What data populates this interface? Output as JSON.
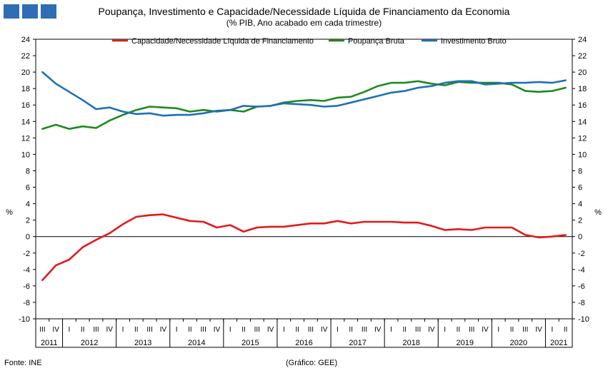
{
  "header": {
    "title": "Poupança, Investimento e Capacidade/Necessidade Líquida de Financiamento da Economia",
    "subtitle": "(% PIB, Ano acabado em cada trimestre)"
  },
  "footer": {
    "source": "Fonte: INE",
    "credit": "(Gráfico: GEE)"
  },
  "colors": {
    "capacidade": "#e31a1c",
    "poupanca": "#1e8a1e",
    "investimento": "#1f6fb8",
    "logo": "#2f6db4"
  },
  "chart_data": {
    "type": "line",
    "ylabel_left": "%",
    "ylabel_right": "%",
    "ylim": [
      -10,
      24
    ],
    "yticks": [
      -10,
      -8,
      -6,
      -4,
      -2,
      0,
      2,
      4,
      6,
      8,
      10,
      12,
      14,
      16,
      18,
      20,
      22,
      24
    ],
    "legend_position": "top-center",
    "grid": false,
    "quarters": [
      "III",
      "IV",
      "I",
      "II",
      "III",
      "IV",
      "I",
      "II",
      "III",
      "IV",
      "I",
      "II",
      "III",
      "IV",
      "I",
      "II",
      "III",
      "IV",
      "I",
      "II",
      "III",
      "IV",
      "I",
      "II",
      "III",
      "IV",
      "I",
      "II",
      "III",
      "IV",
      "I",
      "II",
      "III",
      "IV",
      "I",
      "II",
      "III",
      "IV",
      "I",
      "II"
    ],
    "years": [
      {
        "label": "2011",
        "quarters": 2
      },
      {
        "label": "2012",
        "quarters": 4
      },
      {
        "label": "2013",
        "quarters": 4
      },
      {
        "label": "2014",
        "quarters": 4
      },
      {
        "label": "2015",
        "quarters": 4
      },
      {
        "label": "2016",
        "quarters": 4
      },
      {
        "label": "2017",
        "quarters": 4
      },
      {
        "label": "2018",
        "quarters": 4
      },
      {
        "label": "2019",
        "quarters": 4
      },
      {
        "label": "2020",
        "quarters": 4
      },
      {
        "label": "2021",
        "quarters": 2
      }
    ],
    "series": [
      {
        "name": "Capacidade/Necessidade Líquida de Financiamento",
        "key": "capacidade",
        "values": [
          -5.3,
          -3.5,
          -2.8,
          -1.3,
          -0.4,
          0.4,
          1.5,
          2.4,
          2.6,
          2.7,
          2.3,
          1.9,
          1.8,
          1.1,
          1.4,
          0.6,
          1.1,
          1.2,
          1.2,
          1.4,
          1.6,
          1.6,
          1.9,
          1.6,
          1.8,
          1.8,
          1.8,
          1.7,
          1.7,
          1.3,
          0.8,
          0.9,
          0.8,
          1.1,
          1.1,
          1.1,
          0.2,
          -0.1,
          0.0,
          0.2
        ]
      },
      {
        "name": "Poupança Bruta",
        "key": "poupanca",
        "values": [
          13.1,
          13.6,
          13.1,
          13.4,
          13.2,
          14.1,
          14.8,
          15.4,
          15.8,
          15.7,
          15.6,
          15.2,
          15.4,
          15.2,
          15.4,
          15.2,
          15.8,
          15.9,
          16.3,
          16.5,
          16.6,
          16.5,
          16.9,
          17.0,
          17.6,
          18.3,
          18.7,
          18.7,
          18.9,
          18.6,
          18.4,
          18.8,
          18.7,
          18.7,
          18.7,
          18.5,
          17.7,
          17.6,
          17.7,
          18.1
        ]
      },
      {
        "name": "Investimento Bruto",
        "key": "investimento",
        "values": [
          20.0,
          18.6,
          17.6,
          16.6,
          15.5,
          15.7,
          15.2,
          14.9,
          15.0,
          14.7,
          14.8,
          14.8,
          15.0,
          15.3,
          15.4,
          15.9,
          15.8,
          15.9,
          16.2,
          16.1,
          16.0,
          15.8,
          15.9,
          16.3,
          16.7,
          17.1,
          17.5,
          17.7,
          18.1,
          18.3,
          18.7,
          18.9,
          18.9,
          18.5,
          18.6,
          18.7,
          18.7,
          18.8,
          18.7,
          19.0
        ]
      }
    ]
  }
}
